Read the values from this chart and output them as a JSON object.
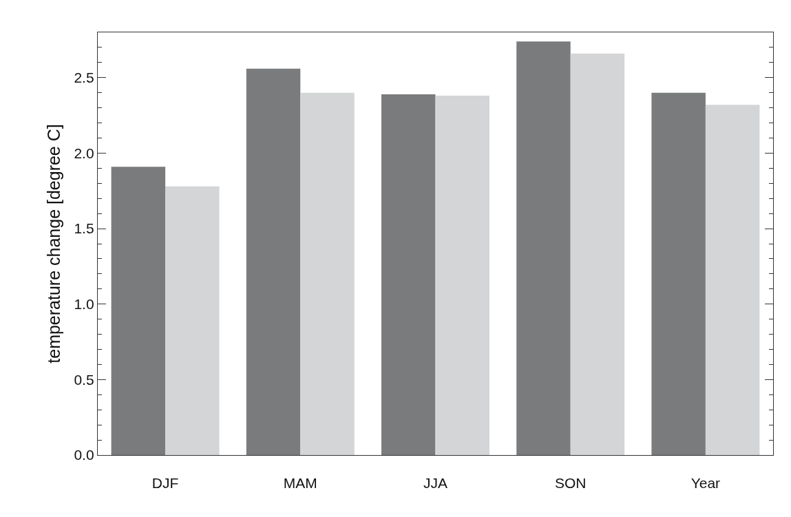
{
  "chart_data": {
    "type": "bar",
    "ylabel": "temperature change [degree C]",
    "categories": [
      "DJF",
      "MAM",
      "JJA",
      "SON",
      "Year"
    ],
    "series": [
      {
        "color": "#7a7b7d",
        "values": [
          1.91,
          2.56,
          2.39,
          2.74,
          2.4
        ]
      },
      {
        "color": "#d3d5d6",
        "values": [
          1.78,
          2.4,
          2.38,
          2.66,
          2.32
        ]
      }
    ],
    "ylim": [
      0,
      2.8
    ],
    "yticks": [
      {
        "value": 0,
        "label": "0.0"
      },
      0.5,
      {
        "value": 1,
        "label": "1.0"
      },
      1.5,
      {
        "value": 2,
        "label": "2.0"
      },
      2.5
    ],
    "grid": false
  }
}
